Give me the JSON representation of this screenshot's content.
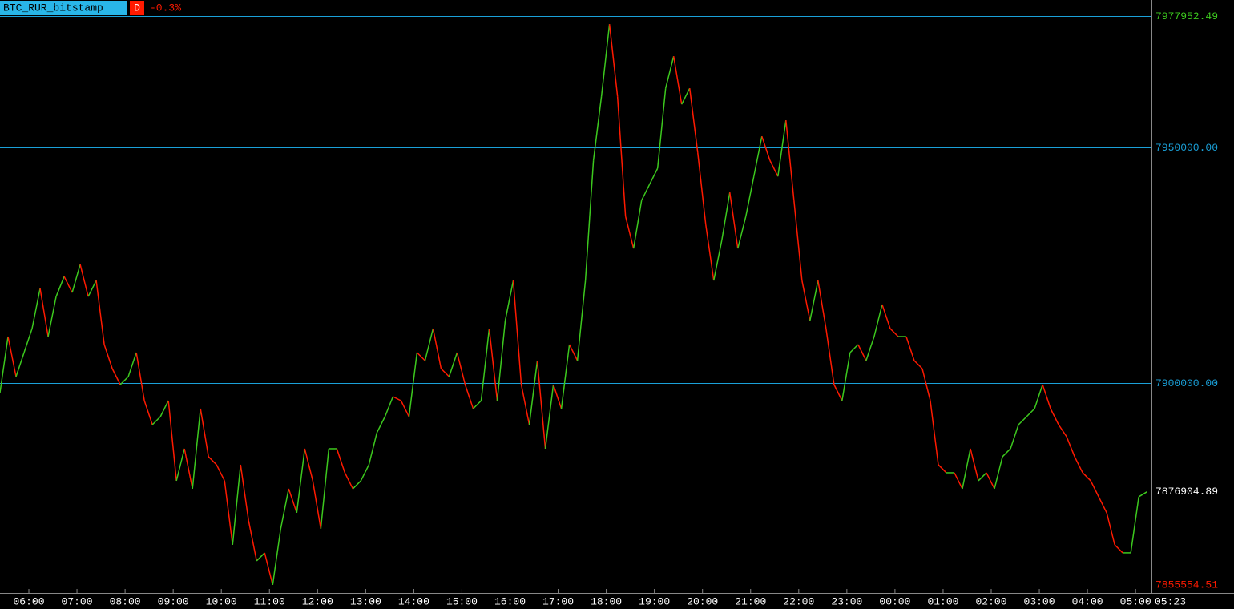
{
  "chart_data": {
    "type": "line",
    "symbol": "BTC_RUR_bitstamp",
    "period": "D",
    "change": "-0.3%",
    "current_time": "05:23",
    "up_color": "#3cc81e",
    "down_color": "#ff1a00",
    "grid_color": "#1aa0d8",
    "ylim": [
      7855442,
      7981293
    ],
    "yticks": [
      {
        "value": 7950000,
        "label": "7950000.00"
      },
      {
        "value": 7900000,
        "label": "7900000.00"
      }
    ],
    "high": 7977952.49,
    "last": 7876904.89,
    "low": 7855554.51,
    "xticks": [
      "06:00",
      "07:00",
      "08:00",
      "09:00",
      "10:00",
      "11:00",
      "12:00",
      "13:00",
      "14:00",
      "15:00",
      "16:00",
      "17:00",
      "18:00",
      "19:00",
      "20:00",
      "21:00",
      "22:00",
      "23:00",
      "00:00",
      "01:00",
      "02:00",
      "03:00",
      "04:00",
      "05:00"
    ],
    "values": [
      7897960,
      7909860,
      7901360,
      7906460,
      7911560,
      7920060,
      7909860,
      7918360,
      7922610,
      7919210,
      7925160,
      7918360,
      7921760,
      7908160,
      7903060,
      7899660,
      7901360,
      7906460,
      7896260,
      7891160,
      7892860,
      7896260,
      7879260,
      7886060,
      7877560,
      7894560,
      7884360,
      7882660,
      7879260,
      7865660,
      7882660,
      7870760,
      7862260,
      7863960,
      7857160,
      7869060,
      7877560,
      7872460,
      7886060,
      7879260,
      7869060,
      7886060,
      7886060,
      7880960,
      7877560,
      7879260,
      7882660,
      7889460,
      7892860,
      7897110,
      7896260,
      7892860,
      7906460,
      7904760,
      7911560,
      7903060,
      7901360,
      7906460,
      7899660,
      7894560,
      7896260,
      7911560,
      7896260,
      7913260,
      7921760,
      7899660,
      7891160,
      7904760,
      7886060,
      7899660,
      7894560,
      7908160,
      7904760,
      7921760,
      7947260,
      7960860,
      7976160,
      7960860,
      7935360,
      7928560,
      7938760,
      7942160,
      7945560,
      7962560,
      7969360,
      7959160,
      7962560,
      7948960,
      7933660,
      7921760,
      7930260,
      7940460,
      7928560,
      7935360,
      7943860,
      7952360,
      7947260,
      7943860,
      7955760,
      7938760,
      7921760,
      7913260,
      7921760,
      7911560,
      7899660,
      7896260,
      7906460,
      7908160,
      7904760,
      7909860,
      7916660,
      7911560,
      7909860,
      7909860,
      7904760,
      7903060,
      7896260,
      7882660,
      7880960,
      7880960,
      7877560,
      7886060,
      7879260,
      7880960,
      7877560,
      7884360,
      7886060,
      7891160,
      7892860,
      7894560,
      7899660,
      7894560,
      7891160,
      7888610,
      7884360,
      7880960,
      7879260,
      7875860,
      7872460,
      7865660,
      7863960,
      7863960,
      7875860,
      7876904.89
    ]
  }
}
